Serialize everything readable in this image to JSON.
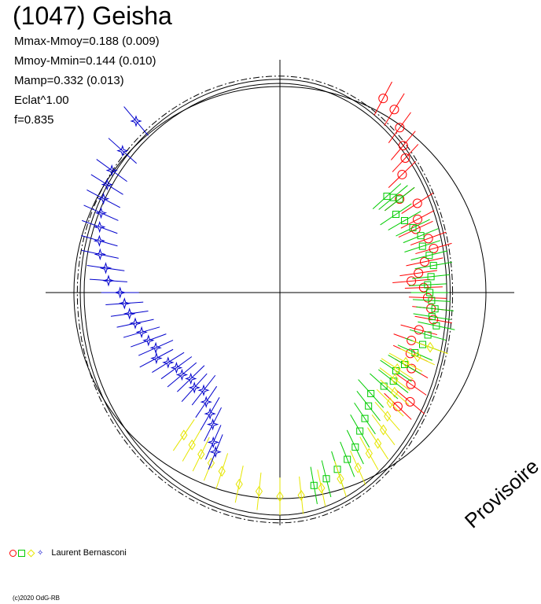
{
  "title": "(1047) Geisha",
  "stats": [
    "Mmax-Mmoy=0.188 (0.009)",
    "Mmoy-Mmin=0.144 (0.010)",
    "Mamp=0.332 (0.013)",
    "Eclat^1.00",
    "f=0.835"
  ],
  "legend": {
    "observer": "Laurent Bernasconi",
    "symbols": [
      {
        "shape": "circle",
        "color": "#ff0000"
      },
      {
        "shape": "square",
        "color": "#00cc00"
      },
      {
        "shape": "diamond",
        "color": "#e6e600"
      },
      {
        "shape": "star",
        "color": "#0000cc"
      }
    ]
  },
  "watermark": "Provisoire",
  "copyright": "(c)2020 OdG-RB",
  "chart_data": {
    "type": "scatter",
    "projection": "polar",
    "title": "(1047) Geisha",
    "axes": "crosshair",
    "reference_circle_radius": 1.0,
    "fit_curves": [
      {
        "style": "solid",
        "offset": 0.0
      },
      {
        "style": "solid",
        "offset": 0.02
      },
      {
        "style": "dashdot",
        "offset": 0.035
      }
    ],
    "fit_curve_scale": {
      "left": 0.88,
      "right": 0.75,
      "top": 0.94,
      "bottom": 1.0
    },
    "series": [
      {
        "symbol": "circle",
        "color": "#ff0000",
        "points": [
          [
            62,
            1.1
          ],
          [
            58,
            1.08
          ],
          [
            54,
            1.02
          ],
          [
            50,
            0.96
          ],
          [
            47,
            0.92
          ],
          [
            44,
            0.85
          ],
          [
            38,
            0.76
          ],
          [
            33,
            0.82
          ],
          [
            28,
            0.78
          ],
          [
            25,
            0.75
          ],
          [
            20,
            0.79
          ],
          [
            16,
            0.8
          ],
          [
            12,
            0.74
          ],
          [
            8,
            0.7
          ],
          [
            5,
            0.66
          ],
          [
            2,
            0.72
          ],
          [
            -2,
            0.74
          ],
          [
            -6,
            0.76
          ],
          [
            -10,
            0.78
          ],
          [
            -15,
            0.72
          ],
          [
            -20,
            0.7
          ],
          [
            -25,
            0.72
          ],
          [
            -30,
            0.76
          ],
          [
            -35,
            0.8
          ],
          [
            -40,
            0.85
          ],
          [
            -44,
            0.82
          ]
        ]
      },
      {
        "symbol": "square",
        "color": "#00cc00",
        "points": [
          [
            42,
            0.72
          ],
          [
            40,
            0.74
          ],
          [
            38,
            0.76
          ],
          [
            34,
            0.7
          ],
          [
            30,
            0.72
          ],
          [
            26,
            0.74
          ],
          [
            22,
            0.76
          ],
          [
            18,
            0.75
          ],
          [
            14,
            0.77
          ],
          [
            10,
            0.78
          ],
          [
            6,
            0.76
          ],
          [
            3,
            0.74
          ],
          [
            0,
            0.75
          ],
          [
            -3,
            0.76
          ],
          [
            -6,
            0.78
          ],
          [
            -9,
            0.77
          ],
          [
            -12,
            0.8
          ],
          [
            -16,
            0.77
          ],
          [
            -20,
            0.76
          ],
          [
            -24,
            0.74
          ],
          [
            -30,
            0.72
          ],
          [
            -34,
            0.7
          ],
          [
            -38,
            0.72
          ],
          [
            -42,
            0.7
          ],
          [
            -48,
            0.68
          ],
          [
            -52,
            0.72
          ],
          [
            -56,
            0.76
          ],
          [
            -60,
            0.8
          ],
          [
            -64,
            0.86
          ],
          [
            -68,
            0.9
          ],
          [
            -72,
            0.93
          ],
          [
            -76,
            0.96
          ],
          [
            -80,
            0.98
          ]
        ]
      },
      {
        "symbol": "diamond",
        "color": "#e6e600",
        "points": [
          [
            -20,
            0.8
          ],
          [
            -25,
            0.76
          ],
          [
            -29,
            0.72
          ],
          [
            -33,
            0.7
          ],
          [
            -37,
            0.72
          ],
          [
            -41,
            0.76
          ],
          [
            -45,
            0.78
          ],
          [
            -49,
            0.82
          ],
          [
            -53,
            0.86
          ],
          [
            -57,
            0.9
          ],
          [
            -61,
            0.92
          ],
          [
            -66,
            0.96
          ],
          [
            -72,
            0.98
          ],
          [
            -78,
            1.0
          ],
          [
            -84,
            1.02
          ],
          [
            -90,
            1.02
          ],
          [
            -96,
            1.0
          ],
          [
            -102,
            0.98
          ],
          [
            -108,
            0.94
          ],
          [
            -112,
            0.92
          ],
          [
            -116,
            0.9
          ],
          [
            -120,
            0.88
          ],
          [
            -124,
            0.86
          ]
        ]
      },
      {
        "symbol": "star",
        "color": "#0000cc",
        "points": [
          [
            130,
            1.12
          ],
          [
            138,
            1.06
          ],
          [
            144,
            1.04
          ],
          [
            148,
            1.02
          ],
          [
            152,
            1.0
          ],
          [
            156,
            0.98
          ],
          [
            160,
            0.96
          ],
          [
            164,
            0.94
          ],
          [
            168,
            0.92
          ],
          [
            172,
            0.88
          ],
          [
            176,
            0.86
          ],
          [
            180,
            0.8
          ],
          [
            -176,
            0.78
          ],
          [
            -172,
            0.76
          ],
          [
            -168,
            0.74
          ],
          [
            -164,
            0.72
          ],
          [
            -160,
            0.7
          ],
          [
            -156,
            0.68
          ],
          [
            -152,
            0.7
          ],
          [
            -148,
            0.66
          ],
          [
            -144,
            0.64
          ],
          [
            -140,
            0.64
          ],
          [
            -136,
            0.62
          ],
          [
            -132,
            0.64
          ],
          [
            -128,
            0.62
          ],
          [
            -124,
            0.66
          ],
          [
            -120,
            0.7
          ],
          [
            -117,
            0.74
          ],
          [
            -114,
            0.82
          ],
          [
            -112,
            0.86
          ]
        ]
      }
    ]
  }
}
